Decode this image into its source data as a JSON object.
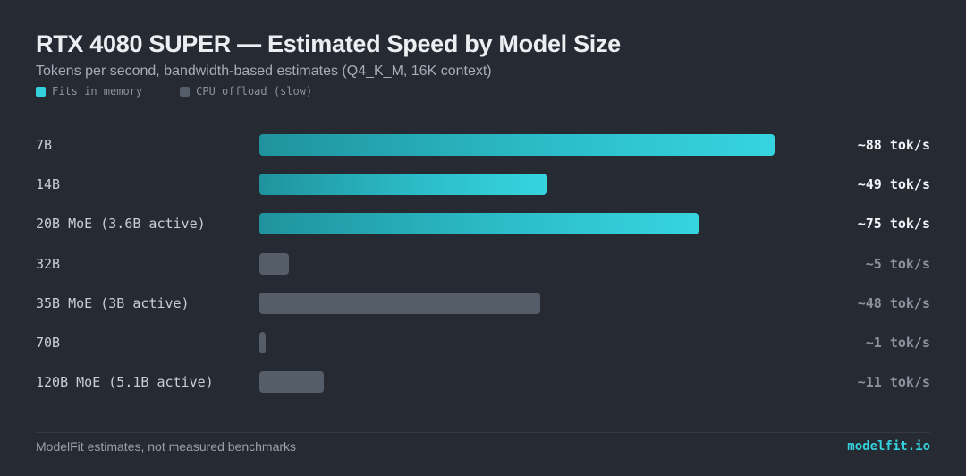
{
  "chart_data": {
    "type": "bar",
    "orientation": "horizontal",
    "title": "RTX 4080 SUPER — Estimated Speed by Model Size",
    "subtitle": "Tokens per second, bandwidth-based estimates (Q4_K_M, 16K context)",
    "legend": [
      {
        "key": "fit",
        "label": "Fits in memory",
        "color": "#34d0dc"
      },
      {
        "key": "off",
        "label": "CPU offload (slow)",
        "color": "#555d69"
      }
    ],
    "legend_position": "top-left",
    "xlim": [
      0,
      100
    ],
    "grid": false,
    "categories": [
      "7B",
      "14B",
      "20B MoE (3.6B active)",
      "32B",
      "35B MoE (3B active)",
      "70B",
      "120B MoE (5.1B active)"
    ],
    "values": [
      88,
      49,
      75,
      5,
      48,
      1,
      11
    ],
    "status": [
      "fit",
      "fit",
      "fit",
      "off",
      "off",
      "off",
      "off"
    ],
    "value_labels": [
      "~88 tok/s",
      "~49 tok/s",
      "~75 tok/s",
      "~5 tok/s",
      "~48 tok/s",
      "~1 tok/s",
      "~11 tok/s"
    ]
  },
  "footer": {
    "note": "ModelFit estimates, not measured benchmarks",
    "brand": "modelfit.io"
  }
}
